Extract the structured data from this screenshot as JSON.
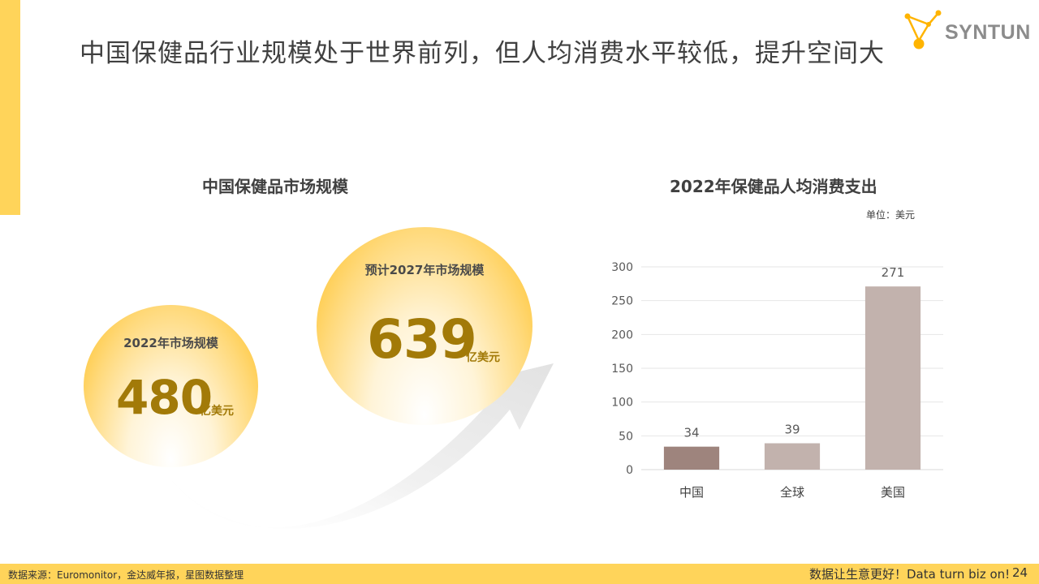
{
  "header": {
    "title": "中国保健品行业规模处于世界前列，但人均消费水平较低，提升空间大",
    "logo_text": "SYNTUN"
  },
  "left_panel": {
    "title": "中国保健品市场规模",
    "current": {
      "label": "2022年市场规模",
      "value": "480",
      "unit": "亿美元"
    },
    "forecast": {
      "label": "预计2027年市场规模",
      "value": "639",
      "unit": "亿美元"
    }
  },
  "right_panel": {
    "title": "2022年保健品人均消费支出",
    "unit_note": "单位：美元"
  },
  "chart_data": {
    "type": "bar",
    "title": "2022年保健品人均消费支出",
    "categories": [
      "中国",
      "全球",
      "美国"
    ],
    "values": [
      34,
      39,
      271
    ],
    "data_labels": [
      "34",
      "39",
      "271"
    ],
    "bar_colors": [
      "#9e847d",
      "#c2b2ad",
      "#c2b2ad"
    ],
    "ylim": [
      0,
      300
    ],
    "yticks": [
      0,
      50,
      100,
      150,
      200,
      250,
      300
    ],
    "grid": true,
    "unit": "单位：美元"
  },
  "footer": {
    "source": "数据来源：Euromonitor，金达威年报，星图数据整理",
    "slogan": "数据让生意更好！Data turn biz on!",
    "page": "24"
  },
  "colors": {
    "accent": "#ffd45a",
    "number": "#a27a08"
  }
}
